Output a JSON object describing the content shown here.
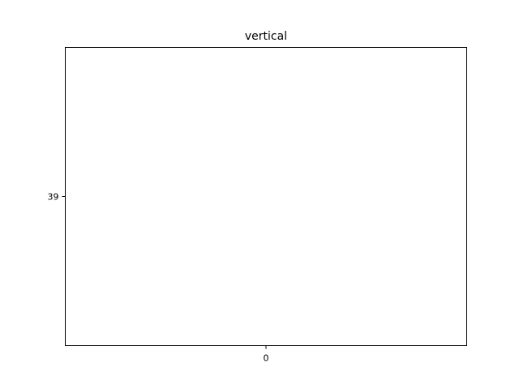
{
  "chart_data": {
    "type": "scatter",
    "title": "vertical",
    "xlabel": "",
    "ylabel": "",
    "x_ticks": [
      "0"
    ],
    "y_ticks": [
      "39"
    ],
    "xlim": [
      -0.5,
      0.5
    ],
    "ylim": [
      38.5,
      39.5
    ],
    "grid": false,
    "series": [
      {
        "x": [],
        "y": []
      }
    ]
  }
}
